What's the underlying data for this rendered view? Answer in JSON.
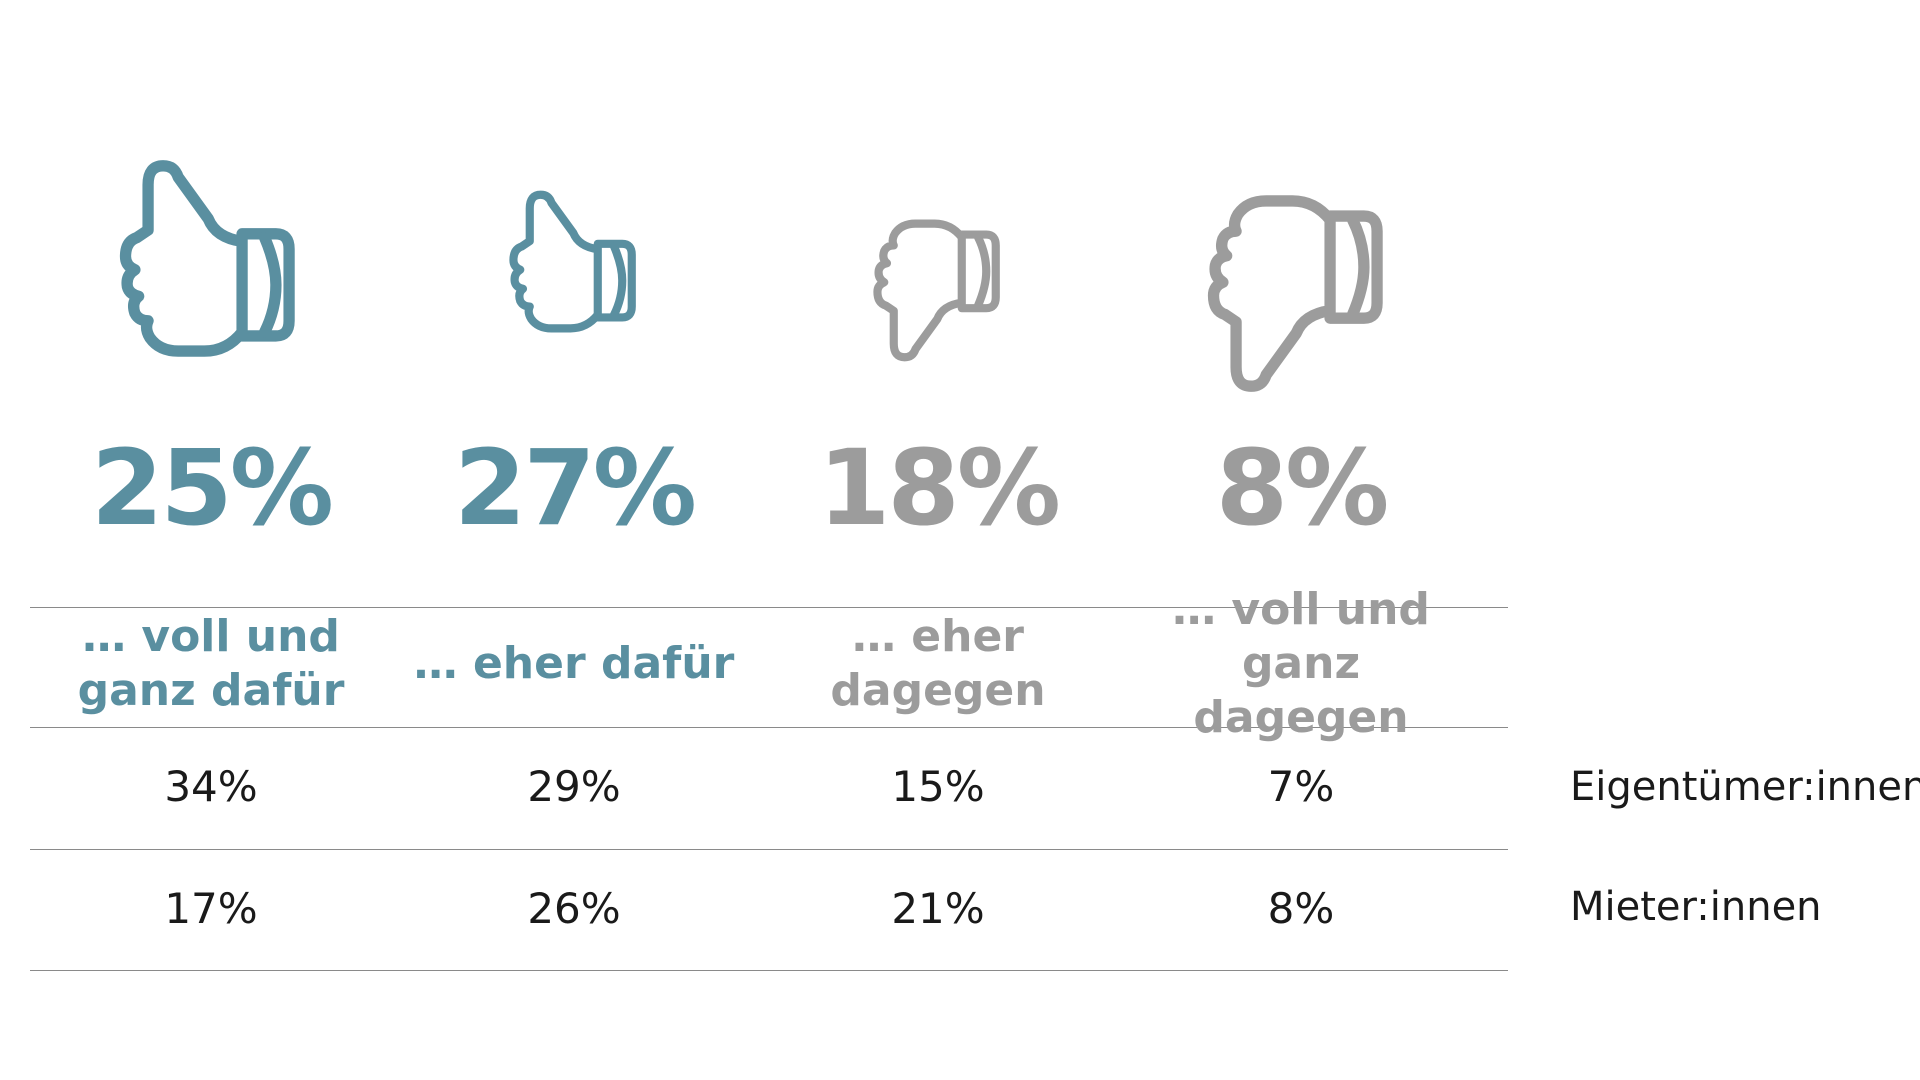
{
  "colors": {
    "positive": "#5a8fa0",
    "negative": "#9c9c9c",
    "text": "#1a1a1a",
    "rule": "#8a8a8a"
  },
  "chart_data": {
    "type": "table",
    "categories": [
      "… voll und ganz dafür",
      "… eher dafür",
      "… eher dagegen",
      "… voll und ganz dagegen"
    ],
    "category_lines": [
      [
        "… voll und",
        "ganz dafür"
      ],
      [
        "… eher dafür"
      ],
      [
        "… eher",
        "dagegen"
      ],
      [
        "… voll und",
        "ganz dagegen"
      ]
    ],
    "icons": [
      "thumbs-up-icon",
      "thumbs-up-icon",
      "thumbs-down-icon",
      "thumbs-down-icon"
    ],
    "totals": [
      25,
      27,
      18,
      8
    ],
    "totals_labels": [
      "25%",
      "27%",
      "18%",
      "8%"
    ],
    "series": [
      {
        "name": "Eigentümer:innen",
        "values": [
          34,
          29,
          15,
          7
        ],
        "labels": [
          "34%",
          "29%",
          "15%",
          "7%"
        ]
      },
      {
        "name": "Mieter:innen",
        "values": [
          17,
          26,
          21,
          8
        ],
        "labels": [
          "17%",
          "26%",
          "21%",
          "8%"
        ]
      }
    ],
    "unit": "%"
  }
}
